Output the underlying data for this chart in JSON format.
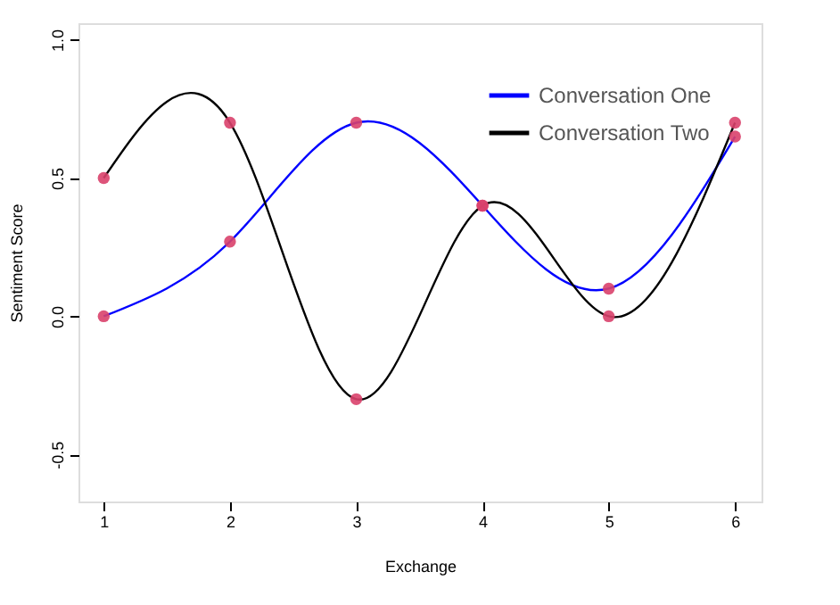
{
  "chart_data": {
    "type": "line",
    "xlabel": "Exchange",
    "ylabel": "Sentiment Score",
    "x": [
      1,
      2,
      3,
      4,
      5,
      6
    ],
    "series": [
      {
        "name": "Conversation One",
        "color": "#0000ff",
        "values": [
          0,
          0.27,
          0.7,
          0.4,
          0.1,
          0.65
        ]
      },
      {
        "name": "Conversation Two",
        "color": "#000000",
        "values": [
          0.5,
          0.7,
          -0.3,
          0.4,
          0,
          0.7
        ]
      }
    ],
    "xlim": [
      0.8,
      6.21
    ],
    "ylim": [
      -0.67,
      1.06
    ],
    "xticks": [
      1,
      2,
      3,
      4,
      5,
      6
    ],
    "yticks": [
      -0.5,
      {
        "value": 0,
        "label": "0.0"
      },
      0.5,
      {
        "value": 1,
        "label": "1.0"
      }
    ],
    "marker": "circle",
    "grid": false,
    "legend": "top right"
  }
}
